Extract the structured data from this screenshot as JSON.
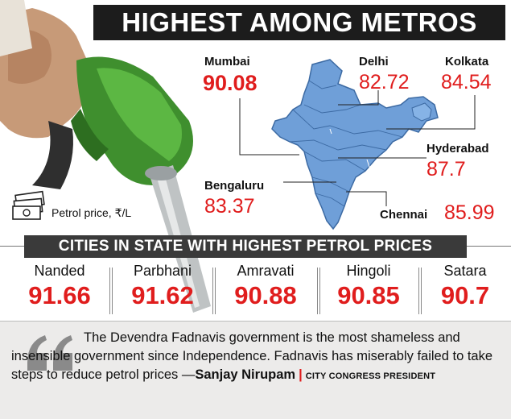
{
  "headline": "HIGHEST AMONG METROS",
  "legend": {
    "icon": "cash-stack-icon",
    "label": "Petrol price, ₹/L"
  },
  "metros": [
    {
      "city": "Mumbai",
      "price": "90.08"
    },
    {
      "city": "Delhi",
      "price": "82.72"
    },
    {
      "city": "Kolkata",
      "price": "84.54"
    },
    {
      "city": "Hyderabad",
      "price": "87.7"
    },
    {
      "city": "Bengaluru",
      "price": "83.37"
    },
    {
      "city": "Chennai",
      "price": "85.99"
    }
  ],
  "state_section": {
    "title": "CITIES IN STATE WITH HIGHEST PETROL PRICES",
    "cities": [
      {
        "city": "Nanded",
        "price": "91.66"
      },
      {
        "city": "Parbhani",
        "price": "91.62"
      },
      {
        "city": "Amravati",
        "price": "90.88"
      },
      {
        "city": "Hingoli",
        "price": "90.85"
      },
      {
        "city": "Satara",
        "price": "90.7"
      }
    ]
  },
  "quote": {
    "text": "The Devendra Fadnavis government is the most shameless and insensible government since Independence. Fadnavis has miserably failed to take steps to reduce petrol prices —",
    "author": "Sanjay Nirupam",
    "separator": "|",
    "role": "CITY CONGRESS PRESIDENT"
  },
  "colors": {
    "accent_red": "#e01d1d",
    "band": "#3a3a3a",
    "headline_bg": "#1c1c1c",
    "map_blue": "#6f9fd8"
  }
}
